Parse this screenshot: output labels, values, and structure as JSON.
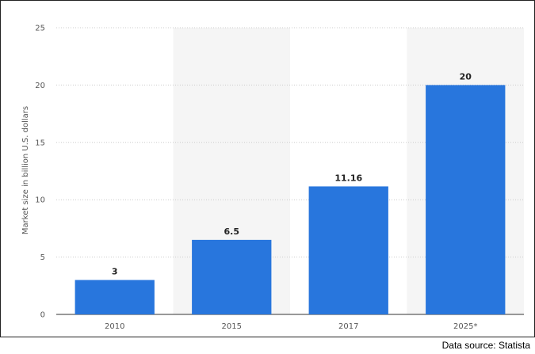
{
  "chart_data": {
    "type": "bar",
    "categories": [
      "2010",
      "2015",
      "2017",
      "2025*"
    ],
    "values": [
      3,
      6.5,
      11.16,
      20
    ],
    "data_labels": [
      "3",
      "6.5",
      "11.16",
      "20"
    ],
    "ylabel": "Market size in billion U.S. dollars",
    "ylim": [
      0,
      25
    ],
    "yticks": [
      0,
      5,
      10,
      15,
      20,
      25
    ],
    "grid": true,
    "bar_color": "#2876dd",
    "band_color": "#f5f5f5"
  },
  "footer": {
    "source": "Data source: Statista"
  }
}
